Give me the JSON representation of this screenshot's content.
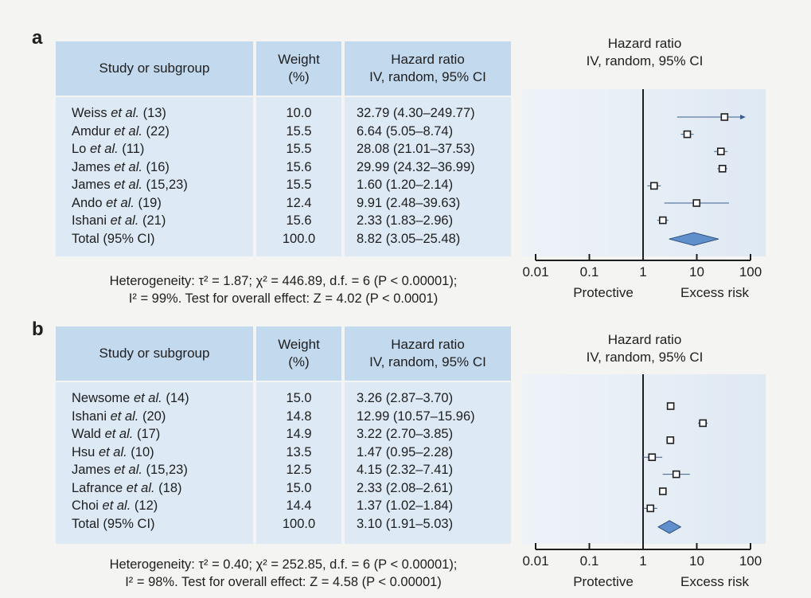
{
  "table_headers": {
    "study": "Study or subgroup",
    "weight_line1": "Weight",
    "weight_line2": "(%)",
    "hr_line1": "Hazard ratio",
    "hr_line2": "IV, random, 95% CI"
  },
  "plot_header": {
    "line1": "Hazard ratio",
    "line2": "IV, random, 95% CI"
  },
  "axis_labels": {
    "left": "Protective",
    "right": "Excess risk"
  },
  "colors": {
    "header_fill": "#c3d9ee",
    "body_fill": "#dde9f4",
    "diamond_fill": "#5f90cc"
  },
  "chart_data": [
    {
      "type": "forest",
      "panel": "a",
      "x_scale": "log",
      "xlim": [
        0.01,
        100
      ],
      "x_ticks": [
        "0.01",
        "0.1",
        "1",
        "10",
        "100"
      ],
      "studies": [
        {
          "label_pre": "Weiss ",
          "label_em": "et al.",
          "label_post": " (13)",
          "weight": "10.0",
          "hr_text": "32.79 (4.30–249.77)",
          "hr": 32.79,
          "lo": 4.3,
          "hi": 249.77
        },
        {
          "label_pre": "Amdur ",
          "label_em": "et al.",
          "label_post": " (22)",
          "weight": "15.5",
          "hr_text": "6.64 (5.05–8.74)",
          "hr": 6.64,
          "lo": 5.05,
          "hi": 8.74
        },
        {
          "label_pre": "Lo ",
          "label_em": "et al.",
          "label_post": " (11)",
          "weight": "15.5",
          "hr_text": "28.08 (21.01–37.53)",
          "hr": 28.08,
          "lo": 21.01,
          "hi": 37.53
        },
        {
          "label_pre": "James ",
          "label_em": "et al.",
          "label_post": " (16)",
          "weight": "15.6",
          "hr_text": "29.99 (24.32–36.99)",
          "hr": 29.99,
          "lo": 24.32,
          "hi": 36.99
        },
        {
          "label_pre": "James ",
          "label_em": "et al.",
          "label_post": " (15,23)",
          "weight": "15.5",
          "hr_text": "1.60 (1.20–2.14)",
          "hr": 1.6,
          "lo": 1.2,
          "hi": 2.14
        },
        {
          "label_pre": "Ando ",
          "label_em": "et al.",
          "label_post": " (19)",
          "weight": "12.4",
          "hr_text": "9.91 (2.48–39.63)",
          "hr": 9.91,
          "lo": 2.48,
          "hi": 39.63
        },
        {
          "label_pre": "Ishani ",
          "label_em": "et al.",
          "label_post": " (21)",
          "weight": "15.6",
          "hr_text": "2.33 (1.83–2.96)",
          "hr": 2.33,
          "lo": 1.83,
          "hi": 2.96
        }
      ],
      "total": {
        "label": "Total (95% CI)",
        "weight": "100.0",
        "hr_text": "8.82 (3.05–25.48)",
        "hr": 8.82,
        "lo": 3.05,
        "hi": 25.48
      },
      "footer_line1": "Heterogeneity: τ² = 1.87; χ² = 446.89, d.f. = 6 (P < 0.00001);",
      "footer_line2": "I² = 99%. Test for overall effect: Z = 4.02 (P < 0.0001)"
    },
    {
      "type": "forest",
      "panel": "b",
      "x_scale": "log",
      "xlim": [
        0.01,
        100
      ],
      "x_ticks": [
        "0.01",
        "0.1",
        "1",
        "10",
        "100"
      ],
      "studies": [
        {
          "label_pre": "Newsome ",
          "label_em": "et al.",
          "label_post": " (14)",
          "weight": "15.0",
          "hr_text": "3.26 (2.87–3.70)",
          "hr": 3.26,
          "lo": 2.87,
          "hi": 3.7
        },
        {
          "label_pre": "Ishani ",
          "label_em": "et al.",
          "label_post": " (20)",
          "weight": "14.8",
          "hr_text": "12.99 (10.57–15.96)",
          "hr": 12.99,
          "lo": 10.57,
          "hi": 15.96
        },
        {
          "label_pre": "Wald ",
          "label_em": "et al.",
          "label_post": " (17)",
          "weight": "14.9",
          "hr_text": "3.22 (2.70–3.85)",
          "hr": 3.22,
          "lo": 2.7,
          "hi": 3.85
        },
        {
          "label_pre": "Hsu ",
          "label_em": "et al.",
          "label_post": " (10)",
          "weight": "13.5",
          "hr_text": "1.47 (0.95–2.28)",
          "hr": 1.47,
          "lo": 0.95,
          "hi": 2.28
        },
        {
          "label_pre": "James ",
          "label_em": "et al.",
          "label_post": " (15,23)",
          "weight": "12.5",
          "hr_text": "4.15 (2.32–7.41)",
          "hr": 4.15,
          "lo": 2.32,
          "hi": 7.41
        },
        {
          "label_pre": "Lafrance ",
          "label_em": "et al.",
          "label_post": " (18)",
          "weight": "15.0",
          "hr_text": "2.33 (2.08–2.61)",
          "hr": 2.33,
          "lo": 2.08,
          "hi": 2.61
        },
        {
          "label_pre": "Choi ",
          "label_em": "et al.",
          "label_post": " (12)",
          "weight": "14.4",
          "hr_text": "1.37 (1.02–1.84)",
          "hr": 1.37,
          "lo": 1.02,
          "hi": 1.84
        }
      ],
      "total": {
        "label": "Total (95% CI)",
        "weight": "100.0",
        "hr_text": "3.10 (1.91–5.03)",
        "hr": 3.1,
        "lo": 1.91,
        "hi": 5.03
      },
      "footer_line1": "Heterogeneity: τ² = 0.40; χ² = 252.85, d.f. = 6 (P < 0.00001);",
      "footer_line2": "I² = 98%. Test for overall effect: Z = 4.58 (P < 0.00001)"
    }
  ]
}
